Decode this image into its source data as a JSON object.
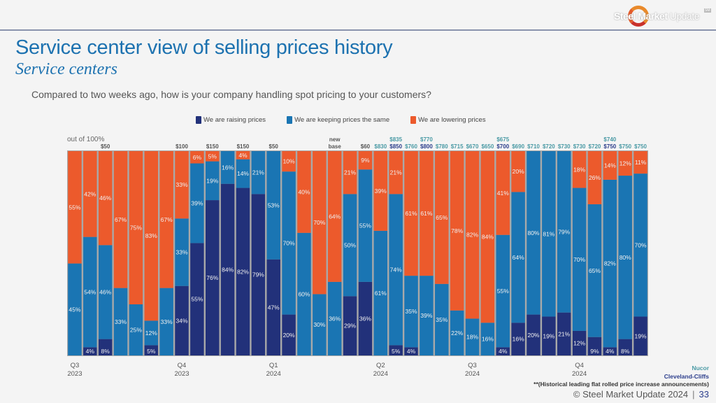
{
  "header": {
    "logo_text_bold": "Steel Market",
    "logo_text_light": "Update",
    "logo_mark": "SM"
  },
  "title": "Service center view of selling prices history",
  "subtitle": "Service centers",
  "question": "Compared to two weeks ago, how is your company handling spot pricing to your customers?",
  "footer": {
    "legend_nucor": "Nucor",
    "legend_cliffs": "Cleveland-Cliffs",
    "note": "**(Historical leading flat rolled price increase announcements)",
    "copyright": "© Steel Market Update 2024",
    "page": "33"
  },
  "colors": {
    "raising": "#22317a",
    "same": "#1a75b3",
    "lowering": "#ec5a2c",
    "nucor": "#4a9aa5",
    "cliffs": "#2c3e8c",
    "generic_price": "#555555"
  },
  "chart_data": {
    "type": "bar",
    "stacked": true,
    "title": "Service center view of selling prices history",
    "ylabel": "out of 100%",
    "ylim": [
      0,
      100
    ],
    "legend_position": "top-center",
    "series": [
      {
        "name": "We are raising prices",
        "values": [
          0,
          4,
          8,
          0,
          0,
          5,
          0,
          34,
          55,
          76,
          84,
          82,
          79,
          47,
          20,
          0,
          0,
          0,
          29,
          36,
          0,
          5,
          4,
          0,
          0,
          0,
          0,
          0,
          4,
          16,
          20,
          19,
          21,
          12,
          9,
          4,
          8,
          19
        ]
      },
      {
        "name": "We are keeping prices the same",
        "values": [
          45,
          54,
          46,
          33,
          25,
          12,
          33,
          33,
          39,
          19,
          16,
          14,
          21,
          53,
          70,
          60,
          30,
          36,
          50,
          55,
          61,
          74,
          35,
          39,
          35,
          22,
          18,
          16,
          55,
          64,
          80,
          81,
          79,
          70,
          65,
          82,
          80,
          70
        ]
      },
      {
        "name": "We are lowering prices",
        "values": [
          55,
          42,
          46,
          67,
          75,
          83,
          67,
          33,
          6,
          5,
          0,
          4,
          0,
          0,
          10,
          40,
          70,
          64,
          21,
          9,
          39,
          21,
          61,
          61,
          65,
          78,
          82,
          84,
          41,
          20,
          0,
          0,
          0,
          18,
          26,
          14,
          12,
          11
        ]
      }
    ],
    "quarter_ticks": [
      {
        "bar": 1,
        "label": [
          "Q3",
          "2023"
        ]
      },
      {
        "bar": 8,
        "label": [
          "Q4",
          "2023"
        ]
      },
      {
        "bar": 14,
        "label": [
          "Q1",
          "2024"
        ]
      },
      {
        "bar": 21,
        "label": [
          "Q2",
          "2024"
        ]
      },
      {
        "bar": 27,
        "label": [
          "Q3",
          "2024"
        ]
      },
      {
        "bar": 34,
        "label": [
          "Q4",
          "2024"
        ]
      }
    ],
    "price_annotations": [
      {
        "bar": 3,
        "text": "$50",
        "type": "generic"
      },
      {
        "bar": 8,
        "text": "$100",
        "type": "generic"
      },
      {
        "bar": 10,
        "text": "$150",
        "type": "generic"
      },
      {
        "bar": 12,
        "text": "$150",
        "type": "generic"
      },
      {
        "bar": 14,
        "text": "$50",
        "type": "generic"
      },
      {
        "bar": 18,
        "text": "new base",
        "type": "generic"
      },
      {
        "bar": 20,
        "text": "$60",
        "type": "generic"
      },
      {
        "bar": 21,
        "text": "$830",
        "type": "nucor"
      },
      {
        "bar": 22,
        "text": "$850",
        "type": "cliffs",
        "upper": "$835"
      },
      {
        "bar": 23,
        "text": "$760",
        "type": "nucor"
      },
      {
        "bar": 24,
        "text": "$800",
        "type": "cliffs",
        "upper": "$770"
      },
      {
        "bar": 25,
        "text": "$780",
        "type": "nucor"
      },
      {
        "bar": 26,
        "text": "$715",
        "type": "nucor"
      },
      {
        "bar": 27,
        "text": "$670",
        "type": "nucor"
      },
      {
        "bar": 28,
        "text": "$650",
        "type": "nucor"
      },
      {
        "bar": 29,
        "text": "$700",
        "type": "cliffs",
        "upper": "$675"
      },
      {
        "bar": 30,
        "text": "$690",
        "type": "nucor"
      },
      {
        "bar": 31,
        "text": "$710",
        "type": "nucor"
      },
      {
        "bar": 32,
        "text": "$720",
        "type": "nucor"
      },
      {
        "bar": 33,
        "text": "$730",
        "type": "nucor"
      },
      {
        "bar": 34,
        "text": "$730",
        "type": "nucor"
      },
      {
        "bar": 35,
        "text": "$720",
        "type": "nucor"
      },
      {
        "bar": 36,
        "text": "$750",
        "type": "cliffs",
        "upper": "$740"
      },
      {
        "bar": 37,
        "text": "$750",
        "type": "nucor"
      },
      {
        "bar": 38,
        "text": "$750",
        "type": "nucor"
      }
    ]
  }
}
